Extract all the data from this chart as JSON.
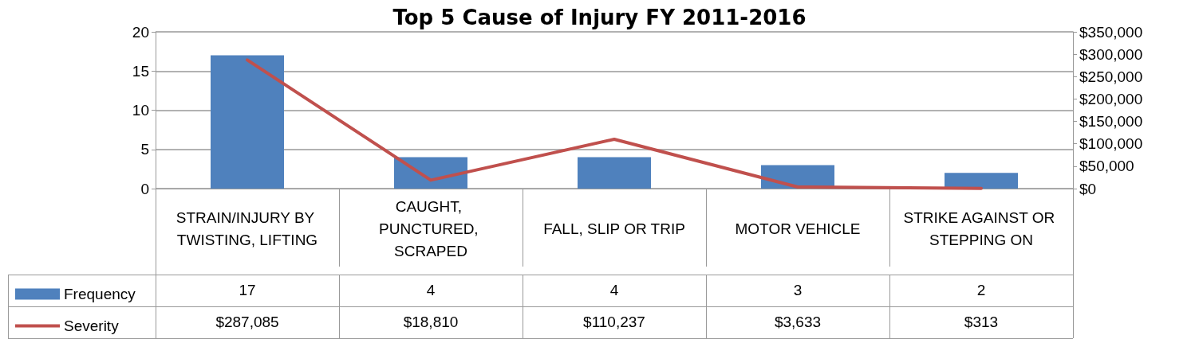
{
  "chart_data": {
    "type": "bar",
    "title": "Top 5 Cause of Injury FY 2011-2016",
    "categories": [
      "STRAIN/INJURY BY TWISTING, LIFTING",
      "CAUGHT, PUNCTURED, SCRAPED",
      "FALL, SLIP OR TRIP",
      "MOTOR VEHICLE",
      "STRIKE AGAINST OR STEPPING ON"
    ],
    "series": [
      {
        "name": "Frequency",
        "color": "#4f81bd",
        "values": [
          17,
          4,
          4,
          3,
          2
        ],
        "value_labels": [
          "17",
          "4",
          "4",
          "3",
          "2"
        ]
      },
      {
        "name": "Severity",
        "type": "line",
        "axis": "y2",
        "color": "#c0504d",
        "values": [
          287085,
          18810,
          110237,
          3633,
          313
        ],
        "value_labels": [
          "$287,085",
          "$18,810",
          "$110,237",
          "$3,633",
          "$313"
        ]
      }
    ],
    "ylim": [
      0,
      20
    ],
    "yticks": [
      0,
      5,
      10,
      15,
      20
    ],
    "y2lim": [
      0,
      350000
    ],
    "y2ticks": [
      {
        "value": 0,
        "label": "$0"
      },
      {
        "value": 50000,
        "label": "$50,000"
      },
      {
        "value": 100000,
        "label": "$100,000"
      },
      {
        "value": 150000,
        "label": "$150,000"
      },
      {
        "value": 200000,
        "label": "$200,000"
      },
      {
        "value": 250000,
        "label": "$250,000"
      },
      {
        "value": 300000,
        "label": "$300,000"
      },
      {
        "value": 350000,
        "label": "$350,000"
      }
    ],
    "grid": "y",
    "legend": "bottom left",
    "marker": "none",
    "line_style": "solid"
  }
}
